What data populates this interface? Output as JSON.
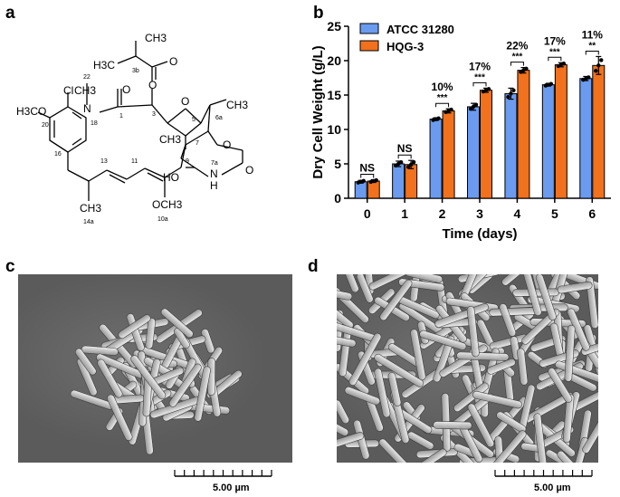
{
  "panels": {
    "a": "a",
    "b": "b",
    "c": "c",
    "d": "d"
  },
  "structure": {
    "labels": {
      "ch3_top": "CH3",
      "h3c_left": "H3C",
      "n3b": "3b",
      "o_ester_carbonyl": "O",
      "o_ester": "O",
      "n22": "22",
      "ch3_n": "CH3",
      "cl": "Cl",
      "n_amide": "N",
      "o_amide": "O",
      "n1": "1",
      "n3": "3",
      "n5": "5",
      "o_epoxide": "O",
      "ch3_6a": "CH3",
      "n6a": "6a",
      "h3co": "H3CO",
      "n20": "20",
      "n18": "18",
      "ch3_4": "CH3",
      "n7": "7",
      "o_carbamate": "O",
      "n16": "16",
      "n13": "13",
      "n11": "11",
      "n9": "9",
      "n7a": "7a",
      "o_carbamate2": "O",
      "ho": "HO",
      "nh": "N",
      "h": "H",
      "ch3_14a": "CH3",
      "n14a": "14a",
      "och3": "OCH3",
      "n10a": "10a"
    }
  },
  "chart_data": {
    "type": "bar",
    "ylabel": "Dry Cell Weight (g/L)",
    "xlabel": "Time (days)",
    "ylim": [
      0,
      25
    ],
    "yticks": [
      0,
      5,
      10,
      15,
      20,
      25
    ],
    "categories": [
      "0",
      "1",
      "2",
      "3",
      "4",
      "5",
      "6"
    ],
    "series": [
      {
        "name": "ATCC 31280",
        "color": "#6b9bef",
        "values": [
          2.4,
          5.0,
          11.5,
          13.3,
          15.2,
          16.5,
          17.4
        ],
        "errors": [
          0.2,
          0.4,
          0.2,
          0.5,
          0.8,
          0.2,
          0.3
        ]
      },
      {
        "name": "HQG-3",
        "color": "#f2711c",
        "values": [
          2.5,
          4.9,
          12.7,
          15.7,
          18.6,
          19.4,
          19.3
        ],
        "errors": [
          0.2,
          0.6,
          0.3,
          0.3,
          0.4,
          0.3,
          1.3
        ]
      }
    ],
    "significance": [
      "NS",
      "NS",
      "***",
      "***",
      "***",
      "***",
      "**"
    ],
    "percent_increase": [
      "",
      "",
      "10%",
      "17%",
      "22%",
      "17%",
      "11%"
    ],
    "legend_position": "top-left",
    "grid": false
  },
  "micrographs": {
    "c": {
      "scale_label": "5.00 µm"
    },
    "d": {
      "scale_label": "5.00 µm"
    }
  }
}
